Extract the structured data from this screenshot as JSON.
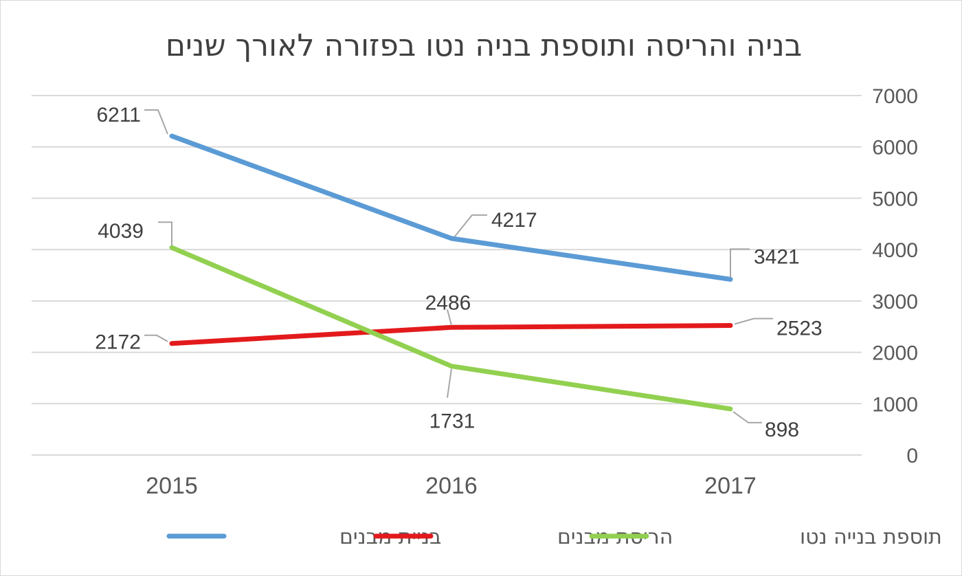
{
  "chart_data": {
    "type": "line",
    "title": "בניה והריסה ותוספת בניה נטו בפזורה לאורך שנים",
    "categories": [
      "2015",
      "2016",
      "2017"
    ],
    "series": [
      {
        "name": "בניית מבנים",
        "color": "#5b9bd5",
        "values": [
          6211,
          4217,
          3421
        ]
      },
      {
        "name": "הריסת מבנים",
        "color": "#e31a1c",
        "values": [
          2172,
          2486,
          2523
        ]
      },
      {
        "name": "תוספת בנייה נטו",
        "color": "#92d050",
        "values": [
          4039,
          1731,
          898
        ]
      }
    ],
    "ylim": [
      0,
      7000
    ],
    "yticks": [
      0,
      1000,
      2000,
      3000,
      4000,
      5000,
      6000,
      7000
    ],
    "y_axis_side": "right",
    "grid": true,
    "legend": "bottom",
    "data_labels": true,
    "gridline_color": "#d9d9d9"
  }
}
